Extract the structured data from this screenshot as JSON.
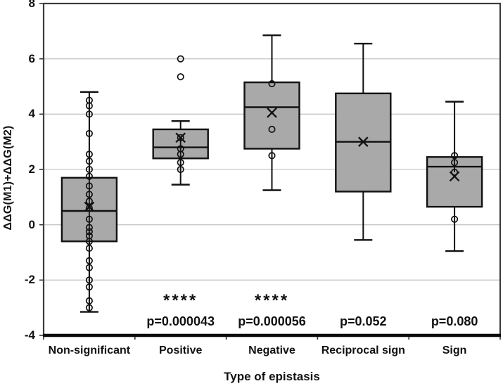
{
  "chart_data": {
    "type": "boxplot",
    "title": "",
    "xlabel": "Type of epistasis",
    "ylabel": "ΔΔG(M1)+ΔΔG(M2)",
    "ylim": [
      -4,
      8
    ],
    "yticks": [
      8,
      6,
      4,
      2,
      0,
      -2,
      -4
    ],
    "grid": true,
    "legend": "none",
    "colors": {
      "box_fill": "#a9a9a9",
      "gridline": "#c6c6c6",
      "line": "#111111",
      "background": "#ffffff"
    },
    "categories": [
      "Non-significant",
      "Positive",
      "Negative",
      "Reciprocal sign",
      "Sign"
    ],
    "series": [
      {
        "category": "Non-significant",
        "whisker_low": -3.15,
        "q1": -0.6,
        "median": 0.5,
        "q3": 1.7,
        "whisker_high": 4.8,
        "mean": 0.65,
        "points": [
          4.5,
          4.3,
          4.0,
          3.3,
          2.55,
          2.3,
          2.0,
          1.75,
          1.4,
          1.1,
          0.85,
          0.6,
          0.2,
          -0.1,
          -0.25,
          -0.4,
          -0.6,
          -0.85,
          -1.3,
          -1.55,
          -2.0,
          -2.25,
          -2.75,
          -3.0
        ],
        "outliers": [],
        "stars": "",
        "p_label": ""
      },
      {
        "category": "Positive",
        "whisker_low": 1.45,
        "q1": 2.4,
        "median": 2.8,
        "q3": 3.45,
        "whisker_high": 3.75,
        "mean": 3.15,
        "points": [
          3.15,
          2.75,
          2.55,
          2.25,
          2.0
        ],
        "outliers": [
          6.0,
          5.35
        ],
        "stars": "****",
        "p_label": "p=0.000043"
      },
      {
        "category": "Negative",
        "whisker_low": 1.25,
        "q1": 2.75,
        "median": 4.25,
        "q3": 5.15,
        "whisker_high": 6.85,
        "mean": 4.05,
        "points": [
          5.1,
          3.45,
          2.5
        ],
        "outliers": [],
        "stars": "****",
        "p_label": "p=0.000056"
      },
      {
        "category": "Reciprocal sign",
        "whisker_low": -0.55,
        "q1": 1.2,
        "median": 3.0,
        "q3": 4.75,
        "whisker_high": 6.55,
        "mean": 3.0,
        "points": [],
        "outliers": [],
        "stars": "",
        "p_label": "p=0.052"
      },
      {
        "category": "Sign",
        "whisker_low": -0.95,
        "q1": 0.65,
        "median": 2.1,
        "q3": 2.45,
        "whisker_high": 4.45,
        "mean": 1.75,
        "points": [
          2.5,
          2.25,
          1.9,
          0.2
        ],
        "outliers": [],
        "stars": "",
        "p_label": "p=0.080"
      }
    ]
  }
}
